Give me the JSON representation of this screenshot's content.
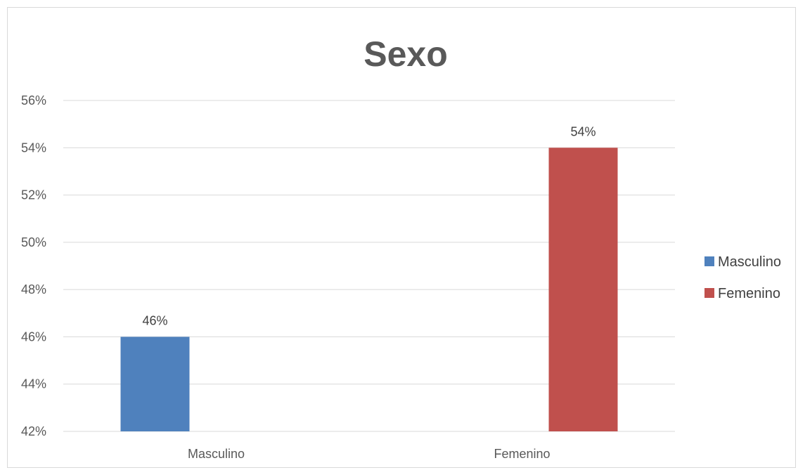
{
  "chart_data": {
    "type": "bar",
    "title": "Sexo",
    "categories": [
      "Masculino",
      "Femenino"
    ],
    "series": [
      {
        "name": "Masculino",
        "values": [
          46,
          null
        ],
        "color": "#4F81BD",
        "labels": [
          "46%",
          ""
        ]
      },
      {
        "name": "Femenino",
        "values": [
          null,
          54
        ],
        "color": "#C0504D",
        "labels": [
          "",
          "54%"
        ]
      }
    ],
    "ylim": [
      42,
      56
    ],
    "ytick_step": 2,
    "ytick_labels": [
      "42%",
      "44%",
      "46%",
      "48%",
      "50%",
      "52%",
      "54%",
      "56%"
    ],
    "grid": true,
    "legend_position": "right"
  }
}
